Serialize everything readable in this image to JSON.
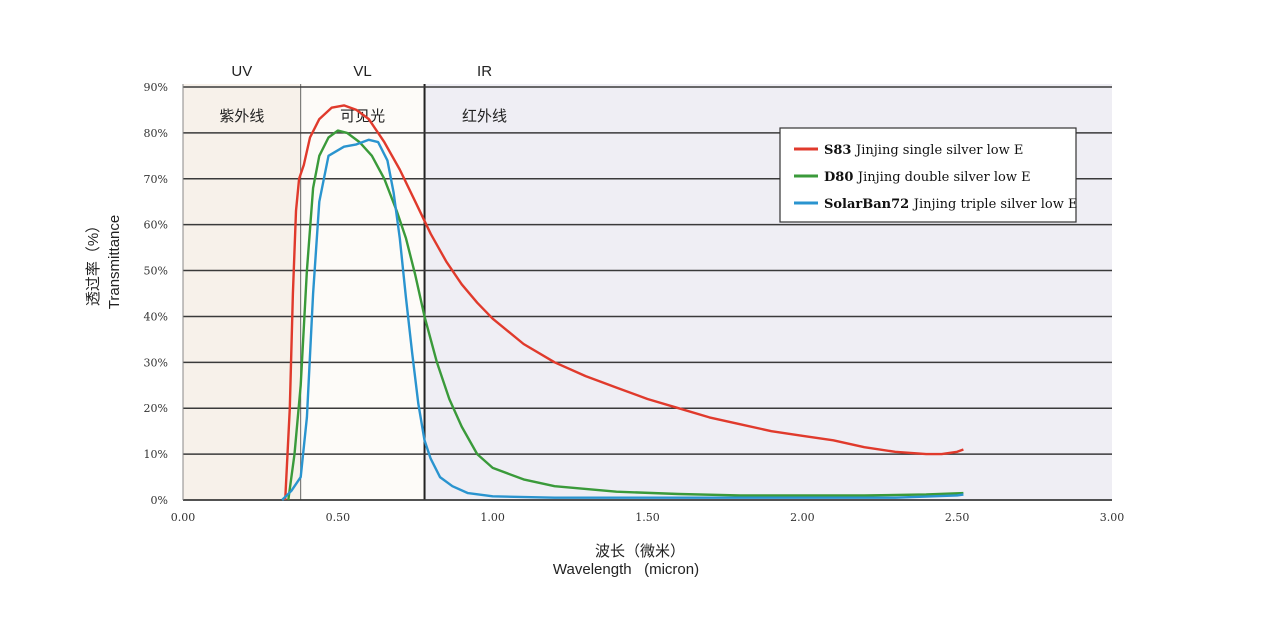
{
  "chart_data": {
    "type": "line",
    "xlabel_cn": "波长（微米）",
    "xlabel_en": "Wavelength   (micron)",
    "ylabel_cn": "透过率（%）",
    "ylabel_en": "Transmittance",
    "xlim": [
      0,
      3.0
    ],
    "ylim": [
      0,
      90
    ],
    "x_ticks": [
      "0.00",
      "0.50",
      "1.00",
      "1.50",
      "2.00",
      "2.50",
      "3.00"
    ],
    "y_ticks": [
      "0%",
      "10%",
      "20%",
      "30%",
      "40%",
      "50%",
      "60%",
      "70%",
      "80%",
      "90%"
    ],
    "grid": "horizontal",
    "legend_position": "top-right",
    "regions": [
      {
        "label": "UV",
        "zone_label": "紫外线",
        "range": [
          0,
          0.38
        ],
        "color": "#f7f1ea"
      },
      {
        "label": "VL",
        "zone_label": "可见光",
        "range": [
          0.38,
          0.78
        ],
        "color": "#fdfbf8"
      },
      {
        "label": "IR",
        "zone_label": "红外线",
        "range": [
          0.78,
          3.0
        ],
        "color": "#efeef4"
      }
    ],
    "series": [
      {
        "name": "S83",
        "desc": "Jinjing single silver low E",
        "color": "#e03a2c",
        "points": [
          [
            0.33,
            0
          ],
          [
            0.345,
            20
          ],
          [
            0.355,
            45
          ],
          [
            0.365,
            63
          ],
          [
            0.375,
            70
          ],
          [
            0.39,
            73
          ],
          [
            0.41,
            79
          ],
          [
            0.44,
            83
          ],
          [
            0.48,
            85.5
          ],
          [
            0.52,
            86
          ],
          [
            0.56,
            85
          ],
          [
            0.6,
            83
          ],
          [
            0.65,
            78
          ],
          [
            0.7,
            72
          ],
          [
            0.75,
            65
          ],
          [
            0.8,
            58
          ],
          [
            0.85,
            52
          ],
          [
            0.9,
            47
          ],
          [
            0.95,
            43
          ],
          [
            1.0,
            39.5
          ],
          [
            1.1,
            34
          ],
          [
            1.2,
            30
          ],
          [
            1.3,
            27
          ],
          [
            1.4,
            24.5
          ],
          [
            1.5,
            22
          ],
          [
            1.6,
            20
          ],
          [
            1.7,
            18
          ],
          [
            1.8,
            16.5
          ],
          [
            1.9,
            15
          ],
          [
            2.0,
            14
          ],
          [
            2.1,
            13
          ],
          [
            2.2,
            11.5
          ],
          [
            2.3,
            10.5
          ],
          [
            2.4,
            10
          ],
          [
            2.45,
            10
          ],
          [
            2.5,
            10.5
          ],
          [
            2.52,
            11
          ]
        ]
      },
      {
        "name": "D80",
        "desc": "Jinjing double silver low E",
        "color": "#3a9a3a",
        "points": [
          [
            0.34,
            0
          ],
          [
            0.36,
            10
          ],
          [
            0.38,
            25
          ],
          [
            0.4,
            50
          ],
          [
            0.42,
            68
          ],
          [
            0.44,
            75
          ],
          [
            0.47,
            79
          ],
          [
            0.5,
            80.5
          ],
          [
            0.53,
            80
          ],
          [
            0.57,
            78
          ],
          [
            0.61,
            75
          ],
          [
            0.65,
            70
          ],
          [
            0.69,
            63
          ],
          [
            0.72,
            57
          ],
          [
            0.75,
            49
          ],
          [
            0.78,
            40
          ],
          [
            0.82,
            30
          ],
          [
            0.86,
            22
          ],
          [
            0.9,
            16
          ],
          [
            0.95,
            10
          ],
          [
            1.0,
            7
          ],
          [
            1.1,
            4.5
          ],
          [
            1.2,
            3
          ],
          [
            1.4,
            1.8
          ],
          [
            1.6,
            1.3
          ],
          [
            1.8,
            1
          ],
          [
            2.0,
            1
          ],
          [
            2.2,
            1
          ],
          [
            2.4,
            1.2
          ],
          [
            2.52,
            1.5
          ]
        ]
      },
      {
        "name": "SolarBan72",
        "desc": "Jinjing triple silver low E",
        "color": "#2a94cf",
        "points": [
          [
            0.32,
            0
          ],
          [
            0.35,
            2
          ],
          [
            0.38,
            5
          ],
          [
            0.4,
            18
          ],
          [
            0.42,
            45
          ],
          [
            0.44,
            65
          ],
          [
            0.47,
            75
          ],
          [
            0.52,
            77
          ],
          [
            0.56,
            77.5
          ],
          [
            0.6,
            78.5
          ],
          [
            0.63,
            78
          ],
          [
            0.66,
            74
          ],
          [
            0.68,
            67
          ],
          [
            0.7,
            57
          ],
          [
            0.72,
            44
          ],
          [
            0.74,
            32
          ],
          [
            0.76,
            21
          ],
          [
            0.78,
            13
          ],
          [
            0.8,
            9
          ],
          [
            0.83,
            5
          ],
          [
            0.87,
            3
          ],
          [
            0.92,
            1.5
          ],
          [
            1.0,
            0.8
          ],
          [
            1.2,
            0.5
          ],
          [
            1.5,
            0.5
          ],
          [
            2.0,
            0.5
          ],
          [
            2.3,
            0.5
          ],
          [
            2.5,
            1
          ],
          [
            2.52,
            1.2
          ]
        ]
      }
    ]
  }
}
